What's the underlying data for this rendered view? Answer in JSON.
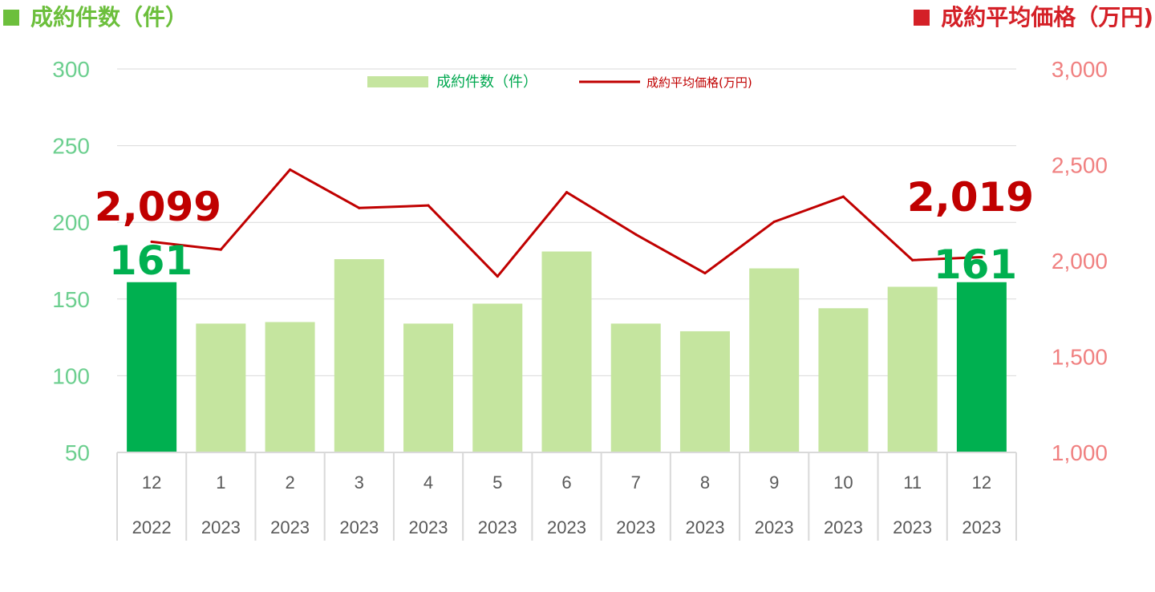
{
  "header": {
    "left_title": "成約件数（件）",
    "right_title": "成約平均価格（万円)"
  },
  "colors": {
    "bar_light": "#c5e59f",
    "bar_highlight": "#00b050",
    "line": "#c00000",
    "left_axis": "#6ccf8f",
    "right_axis": "#f08080"
  },
  "chart_data": {
    "type": "bar",
    "categories": [
      "12",
      "1",
      "2",
      "3",
      "4",
      "5",
      "6",
      "7",
      "8",
      "9",
      "10",
      "11",
      "12"
    ],
    "years": [
      "2022",
      "2023",
      "2023",
      "2023",
      "2023",
      "2023",
      "2023",
      "2023",
      "2023",
      "2023",
      "2023",
      "2023",
      "2023"
    ],
    "highlight_indices": [
      0,
      12
    ],
    "series": [
      {
        "name": "成約件数（件）",
        "type": "bar",
        "axis": "left",
        "values": [
          161,
          134,
          135,
          176,
          134,
          147,
          181,
          134,
          129,
          170,
          144,
          158,
          161
        ]
      },
      {
        "name": "成約平均価格(万円)",
        "type": "line",
        "axis": "right",
        "values": [
          2099,
          2058,
          2475,
          2275,
          2288,
          1918,
          2357,
          2137,
          1935,
          2203,
          2334,
          2003,
          2019
        ]
      }
    ],
    "left_axis": {
      "ylim": [
        50,
        300
      ],
      "ticks": [
        "50",
        "100",
        "150",
        "200",
        "250",
        "300"
      ]
    },
    "right_axis": {
      "ylim": [
        1000,
        3000
      ],
      "ticks": [
        "1,000",
        "1,500",
        "2,000",
        "2,500",
        "3,000"
      ]
    },
    "annotations": {
      "first_price": "2,099",
      "first_count": "161",
      "last_price": "2,019",
      "last_count": "161"
    },
    "legend": {
      "position": "top-center"
    },
    "grid": true
  }
}
